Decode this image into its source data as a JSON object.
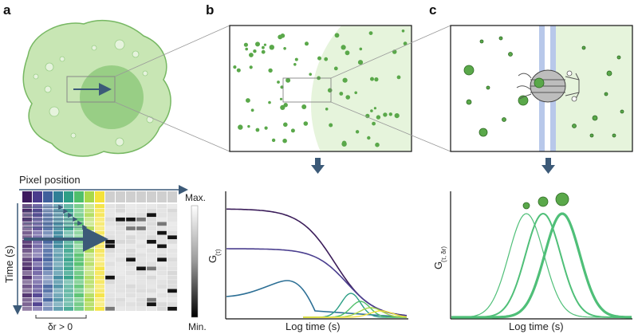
{
  "panels": {
    "a": "a",
    "b": "b",
    "c": "c"
  },
  "labels": {
    "pixel_position": "Pixel position",
    "time": "Time (s)",
    "max": "Max.",
    "min": "Min.",
    "delta_r": "δr > 0",
    "g_b_main": "G",
    "g_b_sub": "(τ)",
    "g_c_main": "G",
    "g_c_sub": "(τ, δr)",
    "x_axis_b": "Log time (s)",
    "x_axis_c": "Log time (s)"
  },
  "colors": {
    "cell_fill": "#c8e6b4",
    "cell_stroke": "#77b863",
    "nucleus": "#7fbf6c",
    "dot": "#5aa84a",
    "arrow": "#3c5a78",
    "curve_green": "#4fbf78",
    "membrane": "#b8c8ea"
  }
}
